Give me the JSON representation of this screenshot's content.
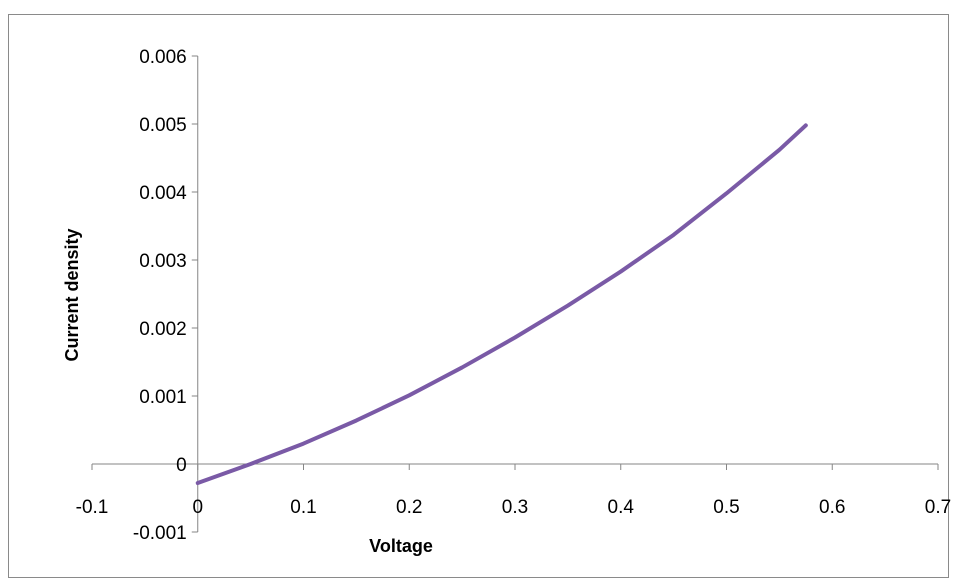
{
  "chart_data": {
    "type": "line",
    "xlabel": "Voltage",
    "ylabel": "Current density",
    "xlim": [
      -0.1,
      0.7
    ],
    "ylim": [
      -0.001,
      0.006
    ],
    "x_ticks": [
      "-0.1",
      "0",
      "0.1",
      "0.2",
      "0.3",
      "0.4",
      "0.5",
      "0.6",
      "0.7"
    ],
    "y_ticks": [
      "-0.001",
      "0",
      "0.001",
      "0.002",
      "0.003",
      "0.004",
      "0.005",
      "0.006"
    ],
    "grid": false,
    "legend": "none",
    "series": [
      {
        "color": "#7a5aa6",
        "x": [
          0,
          0.05,
          0.1,
          0.15,
          0.2,
          0.25,
          0.3,
          0.35,
          0.4,
          0.45,
          0.5,
          0.55,
          0.575
        ],
        "y": [
          -0.00028,
          0.0,
          0.0003,
          0.00064,
          0.00101,
          0.00142,
          0.00186,
          0.00233,
          0.00283,
          0.00337,
          0.00398,
          0.00462,
          0.00498
        ]
      }
    ]
  }
}
